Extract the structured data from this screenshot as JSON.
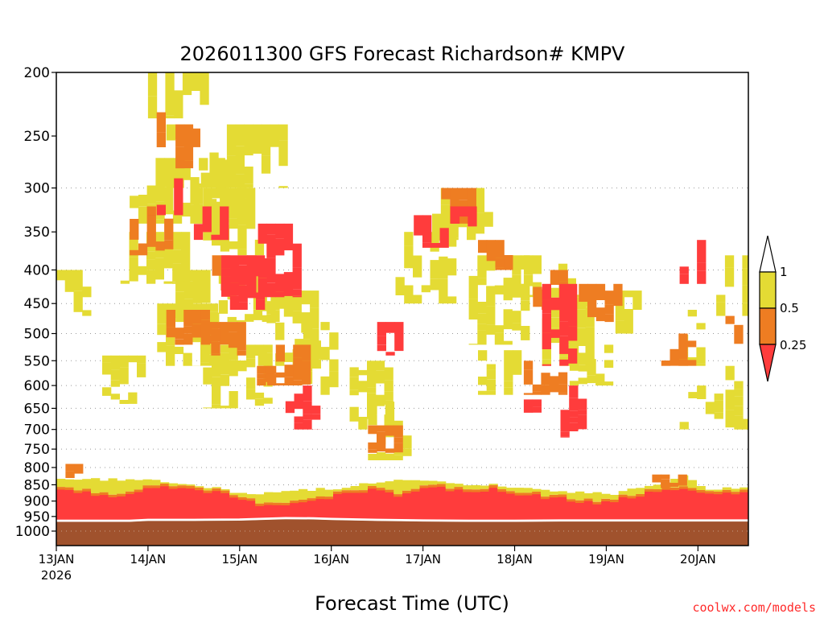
{
  "chart_data": {
    "type": "heatmap",
    "title": "2026011300 GFS Forecast Richardson# KMPV",
    "xlabel": "Forecast Time (UTC)",
    "credit": "coolwx.com/models",
    "x_ticks": [
      "13JAN",
      "14JAN",
      "15JAN",
      "16JAN",
      "17JAN",
      "18JAN",
      "19JAN",
      "20JAN"
    ],
    "x_year": "2026",
    "x_range_days": [
      13.0,
      20.55
    ],
    "y_scale": "log",
    "y_range": [
      1000,
      200
    ],
    "y_extend_bottom": 1040,
    "y_ticks": [
      200,
      250,
      300,
      350,
      400,
      450,
      500,
      550,
      600,
      650,
      700,
      750,
      800,
      850,
      900,
      950,
      1000
    ],
    "y_tick_labels": [
      "200",
      "250",
      "300",
      "350",
      "400",
      "450",
      "500",
      "550",
      "600",
      "650",
      "700",
      "750",
      "800",
      "850",
      "900",
      "950",
      "1000"
    ],
    "grid_levels": [
      300,
      400,
      450,
      500,
      550,
      600,
      650,
      700,
      750,
      800,
      850,
      900,
      950,
      1000
    ],
    "legend": {
      "placement": "right",
      "labels": [
        "1",
        "0.5",
        "0.25"
      ],
      "colors": {
        "lt_0_25": "#ff3c3c",
        "0_25_to_0_5": "#ee7d22",
        "0_5_to_1": "#e4db34",
        "ground": "#a0522d"
      }
    },
    "ground_boundary": [
      [
        13.0,
        968
      ],
      [
        13.8,
        968
      ],
      [
        14.0,
        965
      ],
      [
        14.5,
        965
      ],
      [
        15.0,
        964
      ],
      [
        15.5,
        959
      ],
      [
        15.8,
        960
      ],
      [
        16.0,
        962
      ],
      [
        16.5,
        965
      ],
      [
        17.0,
        967
      ],
      [
        17.5,
        968
      ],
      [
        18.0,
        968
      ],
      [
        18.5,
        967
      ],
      [
        19.0,
        967
      ],
      [
        19.5,
        967
      ],
      [
        20.0,
        967
      ],
      [
        20.55,
        967
      ]
    ],
    "boundary_layer": {
      "tops": [
        [
          13.0,
          858
        ],
        [
          13.3,
          865
        ],
        [
          13.6,
          880
        ],
        [
          13.8,
          875
        ],
        [
          14.0,
          850
        ],
        [
          14.2,
          848
        ],
        [
          14.5,
          858
        ],
        [
          14.8,
          868
        ],
        [
          15.0,
          890
        ],
        [
          15.3,
          910
        ],
        [
          15.5,
          905
        ],
        [
          15.8,
          895
        ],
        [
          16.0,
          878
        ],
        [
          16.3,
          860
        ],
        [
          16.5,
          855
        ],
        [
          16.7,
          875
        ],
        [
          16.9,
          860
        ],
        [
          17.1,
          848
        ],
        [
          17.4,
          865
        ],
        [
          17.7,
          855
        ],
        [
          18.0,
          870
        ],
        [
          18.3,
          880
        ],
        [
          18.6,
          890
        ],
        [
          18.9,
          900
        ],
        [
          19.2,
          880
        ],
        [
          19.5,
          865
        ],
        [
          19.8,
          850
        ],
        [
          20.0,
          870
        ],
        [
          20.3,
          870
        ],
        [
          20.55,
          868
        ]
      ],
      "orange_cap": [
        [
          13.0,
          835
        ],
        [
          14.0,
          835
        ],
        [
          15.0,
          880
        ],
        [
          16.0,
          860
        ],
        [
          16.5,
          840
        ],
        [
          17.0,
          835
        ],
        [
          17.5,
          850
        ],
        [
          18.0,
          860
        ],
        [
          18.5,
          870
        ],
        [
          19.0,
          880
        ],
        [
          19.5,
          850
        ],
        [
          19.8,
          820
        ],
        [
          20.0,
          860
        ],
        [
          20.55,
          860
        ]
      ]
    },
    "cells_ri_0_5_to_1": [
      [
        14.0,
        14.6,
        200,
        235
      ],
      [
        14.2,
        15.5,
        240,
        300
      ],
      [
        13.8,
        14.8,
        270,
        340
      ],
      [
        14.6,
        15.2,
        300,
        380
      ],
      [
        13.7,
        14.4,
        350,
        420
      ],
      [
        14.3,
        15.5,
        400,
        480
      ],
      [
        14.1,
        14.7,
        450,
        560
      ],
      [
        14.6,
        15.3,
        520,
        650
      ],
      [
        15.2,
        15.8,
        430,
        560
      ],
      [
        15.6,
        16.0,
        480,
        620
      ],
      [
        16.2,
        16.6,
        550,
        700
      ],
      [
        16.4,
        16.8,
        620,
        780
      ],
      [
        16.7,
        17.3,
        350,
        450
      ],
      [
        17.1,
        17.7,
        300,
        360
      ],
      [
        17.5,
        18.1,
        380,
        520
      ],
      [
        17.6,
        18.0,
        530,
        620
      ],
      [
        18.1,
        18.7,
        380,
        440
      ],
      [
        18.3,
        18.8,
        440,
        560
      ],
      [
        18.6,
        19.0,
        520,
        600
      ],
      [
        19.1,
        19.3,
        430,
        500
      ],
      [
        19.7,
        20.0,
        460,
        560
      ],
      [
        19.8,
        20.2,
        600,
        700
      ],
      [
        20.2,
        20.5,
        380,
        470
      ],
      [
        20.3,
        20.55,
        560,
        700
      ],
      [
        13.0,
        13.35,
        400,
        470
      ],
      [
        14.5,
        15.0,
        300,
        340
      ],
      [
        13.5,
        13.9,
        540,
        640
      ]
    ],
    "cells_ri_0_25_to_0_5": [
      [
        14.0,
        14.5,
        230,
        260
      ],
      [
        14.3,
        14.6,
        240,
        280
      ],
      [
        13.8,
        14.2,
        320,
        380
      ],
      [
        14.7,
        15.1,
        380,
        430
      ],
      [
        14.5,
        15.0,
        480,
        540
      ],
      [
        14.2,
        14.6,
        460,
        520
      ],
      [
        15.0,
        15.4,
        560,
        600
      ],
      [
        15.3,
        15.7,
        520,
        600
      ],
      [
        16.4,
        16.7,
        690,
        760
      ],
      [
        17.2,
        17.5,
        300,
        340
      ],
      [
        17.6,
        17.9,
        360,
        400
      ],
      [
        18.1,
        18.5,
        550,
        620
      ],
      [
        18.2,
        18.5,
        400,
        460
      ],
      [
        18.7,
        19.1,
        420,
        480
      ],
      [
        19.6,
        19.9,
        500,
        560
      ],
      [
        20.3,
        20.5,
        470,
        520
      ],
      [
        13.1,
        13.3,
        790,
        830
      ],
      [
        19.5,
        19.8,
        820,
        860
      ]
    ],
    "cells_ri_lt_0_25": [
      [
        14.0,
        14.3,
        290,
        330
      ],
      [
        14.5,
        14.8,
        320,
        360
      ],
      [
        14.8,
        15.2,
        380,
        460
      ],
      [
        15.2,
        15.6,
        340,
        440
      ],
      [
        15.5,
        15.8,
        600,
        700
      ],
      [
        16.5,
        16.7,
        480,
        540
      ],
      [
        16.9,
        17.2,
        330,
        370
      ],
      [
        17.3,
        17.5,
        320,
        350
      ],
      [
        18.3,
        18.6,
        420,
        560
      ],
      [
        18.5,
        18.7,
        600,
        720
      ],
      [
        19.8,
        20.0,
        360,
        420
      ],
      [
        18.1,
        18.3,
        630,
        660
      ]
    ]
  }
}
